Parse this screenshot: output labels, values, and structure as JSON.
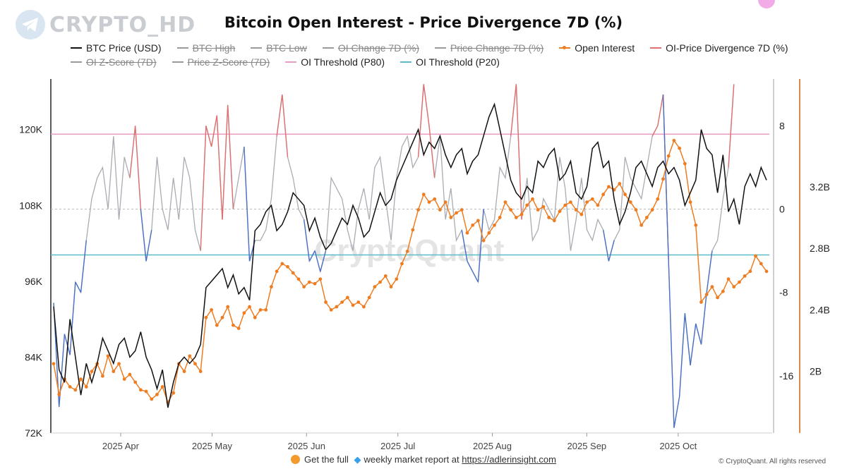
{
  "logo": {
    "text": "CRYPTO_HD",
    "icon": "telegram-icon"
  },
  "footer": {
    "prefix": "Get the full",
    "middle": "weekly market report at",
    "link": "https://adlerinsight.com"
  },
  "copyright": "© CryptoQuant. All rights reserved",
  "watermark": "CryptoQuant",
  "colors": {
    "btc": "#111111",
    "oi": "#ee7d22",
    "div": "#e07070",
    "div_low": "#4a72c4",
    "grey": "#a9acb2",
    "p80": "#ec9cc4",
    "p20": "#5bbccc",
    "right_axis": "#e08a4a",
    "marker": "#ee88dd"
  },
  "chart_data": {
    "type": "line",
    "title": "Bitcoin Open Interest - Price Divergence 7D (%)",
    "legend": [
      {
        "label": "BTC Price (USD)",
        "color": "#111111",
        "active": true
      },
      {
        "label": "BTC High",
        "color": "#9a9a9a",
        "active": false
      },
      {
        "label": "BTC Low",
        "color": "#9a9a9a",
        "active": false
      },
      {
        "label": "OI Change 7D (%)",
        "color": "#9a9a9a",
        "active": false
      },
      {
        "label": "Price Change 7D (%)",
        "color": "#9a9a9a",
        "active": false
      },
      {
        "label": "Open Interest",
        "color": "#ee7d22",
        "active": true,
        "marker": true
      },
      {
        "label": "OI-Price Divergence 7D (%)",
        "color": "#e07070",
        "active": true
      },
      {
        "label": "OI Z-Score (7D)",
        "color": "#9a9a9a",
        "active": false
      },
      {
        "label": "Price Z-Score (7D)",
        "color": "#9a9a9a",
        "active": false
      },
      {
        "label": "OI Threshold (P80)",
        "color": "#ec9cc4",
        "active": true
      },
      {
        "label": "OI Threshold (P20)",
        "color": "#5bbccc",
        "active": true
      }
    ],
    "x_labels": [
      "2025 Apr",
      "2025 May",
      "2025 Jun",
      "2025 Jul",
      "2025 Aug",
      "2025 Sep",
      "2025 Oct"
    ],
    "x_range": [
      "2025-03-10",
      "2025-10-30"
    ],
    "x_label_dates": [
      "2025-04-01",
      "2025-05-01",
      "2025-06-01",
      "2025-07-01",
      "2025-08-01",
      "2025-09-01",
      "2025-10-01"
    ],
    "axes": {
      "price": {
        "ticks": [
          "72K",
          "84K",
          "96K",
          "108K",
          "120K"
        ],
        "range": [
          72000,
          128000
        ]
      },
      "divergence": {
        "ticks": [
          "8",
          "0",
          "-8",
          "-16"
        ],
        "tick_values": [
          8,
          0,
          -8,
          -16
        ],
        "range": [
          -21.5,
          12.5
        ]
      },
      "open_interest": {
        "ticks": [
          "3.2B",
          "2.8B",
          "2.4B",
          "2B"
        ],
        "tick_values": [
          3.2,
          2.8,
          2.4,
          2.0
        ],
        "range": [
          1.6,
          3.9
        ],
        "unit": "B"
      }
    },
    "thresholds": {
      "p80": 7.2,
      "p20": -4.4
    },
    "btc_price_k": [
      92,
      82,
      80,
      90,
      84,
      78,
      83,
      80,
      83,
      87,
      85,
      83,
      86,
      87,
      84,
      85,
      88,
      84,
      82,
      79,
      82,
      76,
      80,
      83,
      84,
      83,
      84,
      86,
      95,
      96,
      97,
      98,
      95,
      97,
      94,
      95,
      93,
      104,
      105,
      107,
      108,
      104,
      105,
      107,
      110,
      109,
      108,
      104,
      106,
      103,
      101,
      102,
      104,
      106,
      105,
      108,
      106,
      103,
      104,
      107,
      110,
      108,
      109,
      112,
      114,
      116,
      118,
      120,
      116,
      118,
      117,
      119,
      116,
      114,
      116,
      117,
      113,
      115,
      116,
      119,
      122,
      124,
      120,
      116,
      112,
      110,
      109,
      111,
      110,
      115,
      114,
      116,
      117,
      112,
      113,
      115,
      110,
      109,
      111,
      117,
      118,
      114,
      115,
      109,
      105,
      107,
      110,
      114,
      115,
      113,
      111,
      114,
      115,
      113,
      114,
      112,
      108,
      110,
      112,
      120,
      117,
      116,
      110,
      116,
      107,
      109,
      105,
      111,
      113,
      111,
      114,
      112
    ],
    "open_interest_b": [
      2.05,
      1.85,
      1.95,
      1.9,
      1.88,
      1.95,
      1.9,
      2.0,
      2.05,
      1.97,
      2.1,
      2.0,
      2.05,
      1.95,
      1.98,
      1.93,
      1.88,
      1.87,
      1.82,
      1.85,
      1.9,
      1.8,
      1.86,
      2.05,
      2.0,
      2.1,
      2.05,
      2.0,
      2.35,
      2.4,
      2.3,
      2.35,
      2.42,
      2.3,
      2.28,
      2.38,
      2.42,
      2.35,
      2.4,
      2.4,
      2.55,
      2.65,
      2.7,
      2.68,
      2.64,
      2.6,
      2.55,
      2.58,
      2.57,
      2.6,
      2.45,
      2.4,
      2.42,
      2.45,
      2.48,
      2.43,
      2.45,
      2.42,
      2.48,
      2.55,
      2.58,
      2.62,
      2.55,
      2.6,
      2.7,
      2.78,
      2.92,
      3.05,
      3.15,
      3.1,
      3.12,
      3.05,
      3.1,
      3.0,
      3.03,
      3.05,
      2.9,
      2.95,
      2.98,
      2.85,
      2.9,
      2.95,
      3.0,
      3.1,
      3.05,
      3.0,
      3.02,
      3.08,
      3.12,
      3.05,
      3.07,
      3.0,
      2.98,
      3.04,
      3.08,
      3.1,
      3.05,
      3.02,
      3.1,
      3.12,
      3.08,
      3.15,
      3.2,
      3.18,
      3.22,
      3.15,
      3.1,
      3.05,
      2.95,
      3.0,
      3.05,
      3.12,
      3.25,
      3.4,
      3.5,
      3.45,
      3.35,
      3.1,
      2.95,
      2.45,
      2.5,
      2.55,
      2.48,
      2.52,
      2.6,
      2.55,
      2.58,
      2.62,
      2.65,
      2.75,
      2.7,
      2.65
    ],
    "divergence_7d": [
      -9,
      -19,
      -12,
      -14,
      -7,
      -8,
      -3,
      1,
      3,
      4,
      0,
      7,
      -1,
      5,
      3,
      8,
      0,
      -5,
      -2,
      5,
      0,
      -2,
      3,
      -1,
      5,
      3,
      -2,
      -4,
      8,
      6,
      9,
      -1,
      10,
      0,
      3,
      6,
      -5,
      -3,
      -3,
      -2,
      1,
      7,
      11,
      5,
      3,
      0,
      -1,
      -5,
      -4,
      -6,
      -4,
      3,
      2,
      1,
      -2,
      -4,
      0,
      2,
      -1,
      4,
      5,
      1,
      -3,
      3,
      6,
      7,
      4,
      5,
      12,
      8,
      3,
      7,
      -1,
      2,
      -3,
      -2,
      -5,
      -6,
      -7,
      0,
      -2,
      -1,
      4,
      3,
      7,
      12,
      -1,
      3,
      -3,
      -2,
      1,
      0,
      -1,
      5,
      2,
      -4,
      -1,
      3,
      -2,
      -3,
      -1,
      -2,
      -5,
      -3,
      -2,
      5,
      3,
      2,
      1,
      4,
      7,
      8,
      11,
      -5,
      -21,
      -18,
      -10,
      -15,
      -11,
      -13,
      -8,
      -4,
      -3,
      1,
      4,
      12
    ]
  }
}
